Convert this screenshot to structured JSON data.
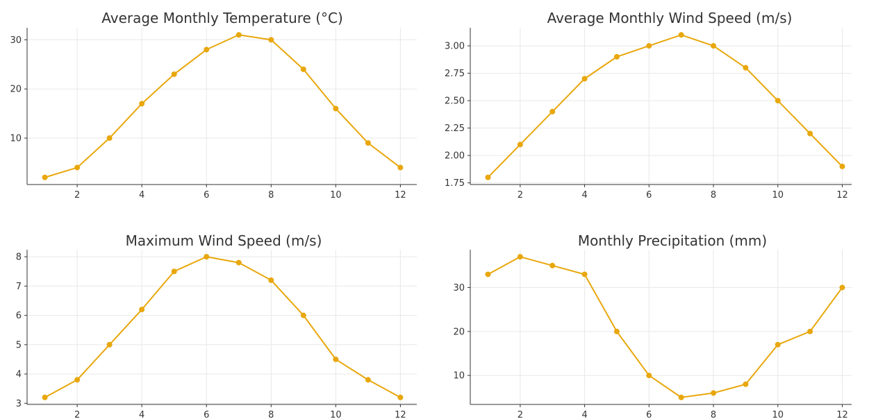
{
  "colors": {
    "series": "#E8A70C",
    "grid": "#e8e8e8",
    "axis": "#333333",
    "background": "#ffffff"
  },
  "chart_data": [
    {
      "type": "line",
      "title": "Average Monthly Temperature (°C)",
      "xlabel": "",
      "ylabel": "",
      "x": [
        1,
        2,
        3,
        4,
        5,
        6,
        7,
        8,
        9,
        10,
        11,
        12
      ],
      "series": [
        {
          "values": [
            2,
            4,
            10,
            17,
            23,
            28,
            31,
            30,
            24,
            16,
            9,
            4
          ]
        }
      ],
      "xticks": [
        2,
        4,
        6,
        8,
        10,
        12
      ],
      "yticks": [
        10,
        20,
        30
      ],
      "xlim": [
        0.45,
        12.55
      ],
      "ylim": [
        0.55,
        32.45
      ],
      "grid": true,
      "legend": "none"
    },
    {
      "type": "line",
      "title": "Average Monthly Wind Speed (m/s)",
      "xlabel": "",
      "ylabel": "",
      "x": [
        1,
        2,
        3,
        4,
        5,
        6,
        7,
        8,
        9,
        10,
        11,
        12
      ],
      "series": [
        {
          "values": [
            1.8,
            2.1,
            2.4,
            2.7,
            2.9,
            3.0,
            3.1,
            3.0,
            2.8,
            2.5,
            2.2,
            1.9
          ]
        }
      ],
      "xticks": [
        2,
        4,
        6,
        8,
        10,
        12
      ],
      "yticks": [
        1.75,
        2.0,
        2.25,
        2.5,
        2.75,
        3.0
      ],
      "ytick_labels": [
        "1.75",
        "2.00",
        "2.25",
        "2.50",
        "2.75",
        "3.00"
      ],
      "xlim": [
        0.45,
        12.55
      ],
      "ylim": [
        1.735,
        3.165
      ],
      "grid": true,
      "legend": "none"
    },
    {
      "type": "line",
      "title": "Maximum Wind Speed (m/s)",
      "xlabel": "",
      "ylabel": "",
      "x": [
        1,
        2,
        3,
        4,
        5,
        6,
        7,
        8,
        9,
        10,
        11,
        12
      ],
      "series": [
        {
          "values": [
            3.2,
            3.8,
            5.0,
            6.2,
            7.5,
            8.0,
            7.8,
            7.2,
            6.0,
            4.5,
            3.8,
            3.2
          ]
        }
      ],
      "xticks": [
        2,
        4,
        6,
        8,
        10,
        12
      ],
      "yticks": [
        3,
        4,
        5,
        6,
        7,
        8
      ],
      "xlim": [
        0.45,
        12.55
      ],
      "ylim": [
        2.96,
        8.24
      ],
      "grid": true,
      "legend": "none"
    },
    {
      "type": "line",
      "title": "Monthly Precipitation (mm)",
      "xlabel": "",
      "ylabel": "",
      "x": [
        1,
        2,
        3,
        4,
        5,
        6,
        7,
        8,
        9,
        10,
        11,
        12
      ],
      "series": [
        {
          "values": [
            33,
            37,
            35,
            33,
            20,
            10,
            5,
            6,
            8,
            17,
            20,
            30
          ]
        }
      ],
      "xticks": [
        2,
        4,
        6,
        8,
        10,
        12
      ],
      "yticks": [
        10,
        20,
        30
      ],
      "xlim": [
        0.45,
        12.55
      ],
      "ylim": [
        3.4,
        38.6
      ],
      "grid": true,
      "legend": "none"
    }
  ]
}
